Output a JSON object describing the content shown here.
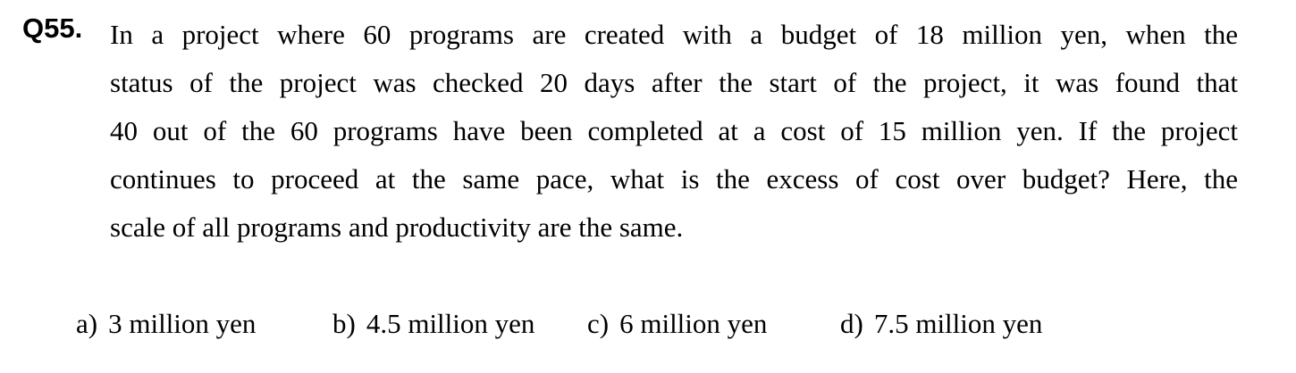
{
  "question": {
    "number": "Q55.",
    "lines": [
      "In a project where 60 programs are created with a budget of 18 million yen, when the",
      "status of the project was checked 20 days after the start of the project, it was found that",
      "40 out of the 60 programs have been completed at a cost of 15 million yen. If the project",
      "continues to proceed at the same pace, what is the excess of cost over budget? Here, the",
      "scale of all programs and productivity are the same."
    ]
  },
  "options": [
    {
      "letter": "a)",
      "text": "3 million yen"
    },
    {
      "letter": "b)",
      "text": "4.5 million yen"
    },
    {
      "letter": "c)",
      "text": "6 million yen"
    },
    {
      "letter": "d)",
      "text": "7.5 million yen"
    }
  ]
}
